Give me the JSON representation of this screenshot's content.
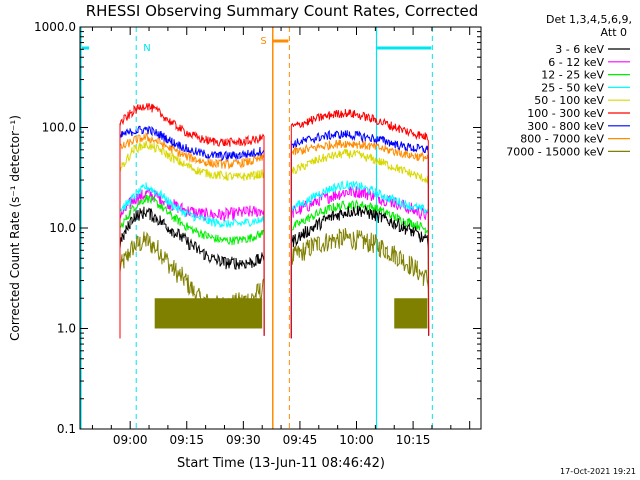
{
  "chart_data": {
    "type": "line",
    "title": "RHESSI Observing Summary Count Rates, Corrected",
    "xlabel": "Start Time (13-Jun-11 08:46:42)",
    "ylabel": "Corrected Count Rate (s⁻¹ detector⁻¹)",
    "ylog": true,
    "ylim": [
      0.1,
      1000
    ],
    "xlim_min": [
      -13.3,
      93
    ],
    "yticks": [
      "0.1",
      "1.0",
      "10.0",
      "100.0",
      "1000.0"
    ],
    "xticks": [
      {
        "label": "09:00",
        "min": 0
      },
      {
        "label": "09:15",
        "min": 15
      },
      {
        "label": "09:30",
        "min": 30
      },
      {
        "label": "09:45",
        "min": 45
      },
      {
        "label": "10:00",
        "min": 60
      },
      {
        "label": "10:15",
        "min": 75
      }
    ],
    "legend": {
      "header": [
        "Det 1,3,4,5,6,9,",
        "Att 0"
      ],
      "placement": "right"
    },
    "timestamp": "17-Oct-2021 19:21",
    "markers": [
      {
        "label": "N",
        "kind": "night",
        "color": "#00e5ee",
        "day_end": -10.9,
        "night_start": 1.6,
        "night_end": 65.3,
        "day_start": 80.1
      },
      {
        "label": "S",
        "kind": "saa",
        "color": "#ff8c00",
        "start": 37.8,
        "end": 42.2
      }
    ],
    "segments": [
      [
        -2.7,
        35.5
      ],
      [
        42.7,
        79.1
      ]
    ],
    "series": [
      {
        "name": "3 - 6 keV",
        "color": "#000000",
        "seg1": [
          7,
          13,
          14.5,
          12,
          9.5,
          7.5,
          6,
          5,
          4.5,
          4.5,
          4.5,
          5
        ],
        "seg2": [
          7.2,
          9,
          11,
          13,
          14.5,
          15,
          13.5,
          12,
          10.5,
          9,
          7.2
        ]
      },
      {
        "name": "6 - 12 keV",
        "color": "#ff00ff",
        "seg1": [
          13,
          19,
          22,
          20,
          17,
          15,
          14,
          13.5,
          13.5,
          14,
          14.5,
          15
        ],
        "seg2": [
          14,
          16,
          19,
          21,
          23,
          23,
          21,
          19,
          17,
          15,
          13
        ]
      },
      {
        "name": "12 - 25 keV",
        "color": "#00ee00",
        "seg1": [
          10,
          16,
          20,
          17,
          13,
          10.5,
          9,
          8,
          7.5,
          7.5,
          8,
          9
        ],
        "seg2": [
          10,
          12,
          14,
          16,
          17,
          17,
          16,
          14,
          12,
          11,
          9.5
        ]
      },
      {
        "name": "25 - 50 keV",
        "color": "#00ffff",
        "seg1": [
          15,
          20,
          26,
          22,
          17,
          14,
          12.5,
          11.5,
          11,
          11,
          11.5,
          12
        ],
        "seg2": [
          16,
          18,
          22,
          25,
          27,
          26,
          23,
          20,
          18,
          16,
          15
        ]
      },
      {
        "name": "50 - 100 keV",
        "color": "#d8d800",
        "seg1": [
          38,
          60,
          68,
          60,
          50,
          42,
          37,
          34,
          33,
          32,
          33,
          35
        ],
        "seg2": [
          36,
          42,
          48,
          52,
          55,
          53,
          48,
          43,
          38,
          34,
          30
        ]
      },
      {
        "name": "100 - 300 keV",
        "color": "#ff0000",
        "seg1": [
          110,
          145,
          168,
          140,
          110,
          90,
          78,
          73,
          71,
          71,
          74,
          79
        ],
        "seg2": [
          100,
          112,
          124,
          134,
          140,
          132,
          120,
          108,
          96,
          87,
          80
        ]
      },
      {
        "name": "300 - 800 keV",
        "color": "#0000ff",
        "seg1": [
          82,
          92,
          96,
          86,
          72,
          62,
          56,
          53,
          52,
          53,
          55,
          60
        ],
        "seg2": [
          68,
          74,
          80,
          84,
          86,
          82,
          78,
          72,
          66,
          62,
          60
        ]
      },
      {
        "name": "800 - 7000 keV",
        "color": "#ff8c00",
        "seg1": [
          62,
          74,
          80,
          72,
          60,
          52,
          47,
          44,
          43,
          44,
          46,
          50
        ],
        "seg2": [
          56,
          60,
          64,
          68,
          70,
          68,
          64,
          60,
          56,
          52,
          50
        ]
      },
      {
        "name": "7000 - 15000 keV",
        "color": "#808000",
        "seg1": [
          4,
          6.5,
          7.5,
          6,
          4,
          3,
          2,
          1.7,
          1.7,
          1.8,
          2,
          2.5
        ],
        "seg2": [
          5,
          6,
          7,
          7.5,
          8,
          7.5,
          7,
          6,
          5,
          4,
          3
        ]
      }
    ]
  }
}
